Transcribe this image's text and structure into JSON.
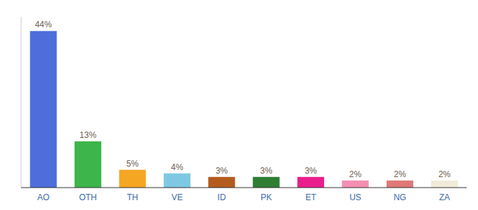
{
  "chart_data": {
    "type": "bar",
    "categories": [
      "AO",
      "OTH",
      "TH",
      "VE",
      "ID",
      "PK",
      "ET",
      "US",
      "NG",
      "ZA"
    ],
    "values": [
      44,
      13,
      5,
      4,
      3,
      3,
      3,
      2,
      2,
      2
    ],
    "value_labels": [
      "44%",
      "13%",
      "5%",
      "4%",
      "3%",
      "3%",
      "3%",
      "2%",
      "2%",
      "2%"
    ],
    "colors": [
      "#4d6edb",
      "#3db54a",
      "#f5a623",
      "#7ec8e3",
      "#b35c1e",
      "#2e7d32",
      "#e91e8c",
      "#f48fb1",
      "#e07878",
      "#f0ead8"
    ],
    "ylim": [
      0,
      48
    ],
    "data_labels": true,
    "tick_labels": "x",
    "grid": false
  }
}
